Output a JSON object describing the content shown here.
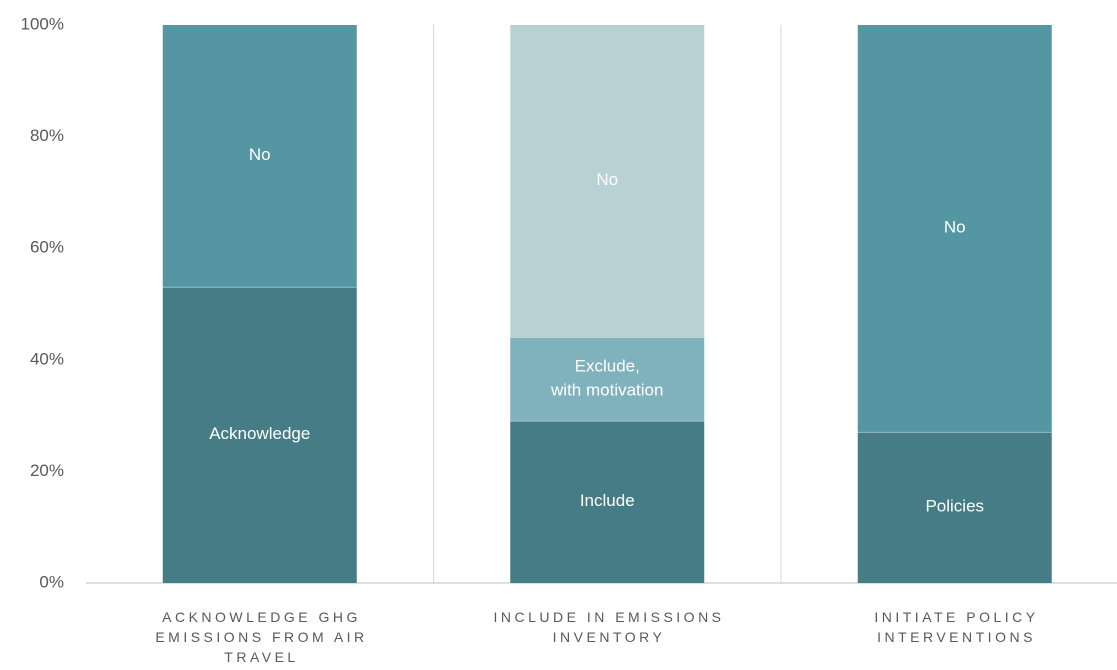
{
  "chart_data": {
    "type": "stacked_bar",
    "categories": [
      "ACKNOWLEDGE GHG EMISSIONS FROM AIR TRAVEL",
      "INCLUDE IN EMISSIONS INVENTORY",
      "INITIATE POLICY INTERVENTIONS"
    ],
    "stacks": [
      [
        {
          "label": "Acknowledge",
          "value": 53,
          "color": "#457c85"
        },
        {
          "label": "No",
          "value": 47,
          "color": "#5497a2"
        }
      ],
      [
        {
          "label": "Include",
          "value": 29,
          "color": "#457c85"
        },
        {
          "label": "Exclude,\nwith motivation",
          "value": 15,
          "color": "#7fb2bc"
        },
        {
          "label": "No",
          "value": 56,
          "color": "#b9d0d5"
        }
      ],
      [
        {
          "label": "Policies",
          "value": 27,
          "color": "#457c85"
        },
        {
          "label": "No",
          "value": 73,
          "color": "#5497a2"
        }
      ]
    ],
    "ylim": [
      0,
      100
    ],
    "yticks": [
      {
        "value": 0,
        "label": "0%"
      },
      {
        "value": 20,
        "label": "20%"
      },
      {
        "value": 40,
        "label": "40%"
      },
      {
        "value": 60,
        "label": "60%"
      },
      {
        "value": 80,
        "label": "80%"
      },
      {
        "value": 100,
        "label": "100%"
      }
    ]
  }
}
